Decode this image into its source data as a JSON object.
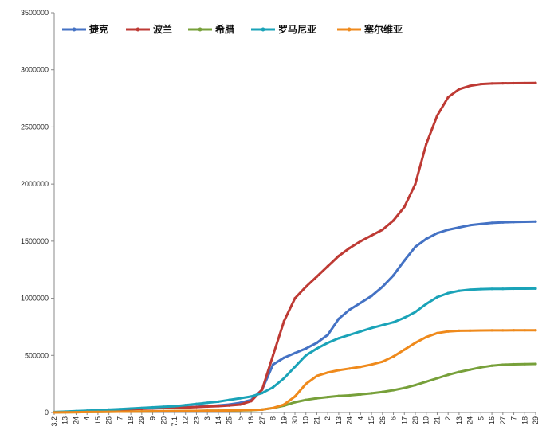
{
  "chart_data": {
    "type": "line",
    "title": "",
    "xlabel": "",
    "ylabel": "",
    "ylim": [
      0,
      3500000
    ],
    "y_ticks": [
      "0",
      "500000",
      "1000000",
      "1500000",
      "2000000",
      "2500000",
      "3000000",
      "3500000"
    ],
    "x_tick_labels": [
      "3.2",
      "13",
      "24",
      "4",
      "15",
      "26",
      "7",
      "18",
      "29",
      "9",
      "20",
      "7.1",
      "12",
      "23",
      "3",
      "14",
      "25",
      "5",
      "16",
      "27",
      "8",
      "19",
      "30",
      "10",
      "21",
      "2",
      "13",
      "24",
      "4",
      "15",
      "26",
      "6",
      "17",
      "28",
      "10",
      "21",
      "2",
      "13",
      "24",
      "5",
      "16",
      "27",
      "7",
      "18",
      "29"
    ],
    "grid": false,
    "legend_position": "top",
    "series": [
      {
        "name": "捷克",
        "color": "#4472c4",
        "values": [
          3000,
          6000,
          10000,
          14000,
          18000,
          22000,
          26000,
          30000,
          34000,
          38000,
          40000,
          42000,
          45000,
          50000,
          56000,
          62000,
          70000,
          85000,
          110000,
          200000,
          420000,
          480000,
          520000,
          560000,
          610000,
          680000,
          820000,
          900000,
          960000,
          1020000,
          1100000,
          1200000,
          1330000,
          1450000,
          1520000,
          1570000,
          1600000,
          1620000,
          1640000,
          1650000,
          1660000,
          1665000,
          1668000,
          1670000,
          1672000
        ]
      },
      {
        "name": "波兰",
        "color": "#be3a34",
        "values": [
          2000,
          4000,
          8000,
          12000,
          16000,
          20000,
          24000,
          28000,
          32000,
          35000,
          38000,
          40000,
          43000,
          48000,
          52000,
          56000,
          62000,
          70000,
          100000,
          200000,
          500000,
          800000,
          1000000,
          1100000,
          1190000,
          1280000,
          1370000,
          1440000,
          1500000,
          1550000,
          1600000,
          1680000,
          1800000,
          2000000,
          2350000,
          2600000,
          2760000,
          2830000,
          2860000,
          2875000,
          2880000,
          2882000,
          2883000,
          2884000,
          2885000
        ]
      },
      {
        "name": "希腊",
        "color": "#77a03a",
        "values": [
          1000,
          2000,
          3000,
          4000,
          5000,
          6000,
          7000,
          8000,
          9000,
          10000,
          11000,
          12000,
          13000,
          14000,
          15000,
          16000,
          17000,
          18000,
          20000,
          25000,
          40000,
          60000,
          90000,
          110000,
          125000,
          135000,
          145000,
          150000,
          158000,
          168000,
          180000,
          195000,
          215000,
          240000,
          270000,
          300000,
          330000,
          355000,
          375000,
          395000,
          410000,
          418000,
          422000,
          424000,
          425000
        ]
      },
      {
        "name": "罗马尼亚",
        "color": "#1aa3b8",
        "values": [
          4000,
          8000,
          12000,
          16000,
          20000,
          25000,
          30000,
          35000,
          40000,
          45000,
          50000,
          55000,
          65000,
          75000,
          85000,
          95000,
          110000,
          125000,
          140000,
          170000,
          220000,
          300000,
          400000,
          500000,
          560000,
          610000,
          650000,
          680000,
          710000,
          740000,
          765000,
          790000,
          830000,
          880000,
          950000,
          1010000,
          1045000,
          1065000,
          1075000,
          1080000,
          1082000,
          1083000,
          1084000,
          1084000,
          1085000
        ]
      },
      {
        "name": "塞尔维亚",
        "color": "#ef8a1c",
        "values": [
          1000,
          2000,
          3000,
          4000,
          5000,
          6000,
          7000,
          8000,
          9000,
          10000,
          11000,
          12000,
          13000,
          14000,
          15000,
          16000,
          18000,
          20000,
          22000,
          25000,
          40000,
          70000,
          140000,
          250000,
          320000,
          350000,
          370000,
          385000,
          400000,
          420000,
          445000,
          490000,
          550000,
          610000,
          660000,
          695000,
          710000,
          715000,
          717000,
          718000,
          719000,
          719000,
          720000,
          720000,
          720000
        ]
      }
    ]
  }
}
